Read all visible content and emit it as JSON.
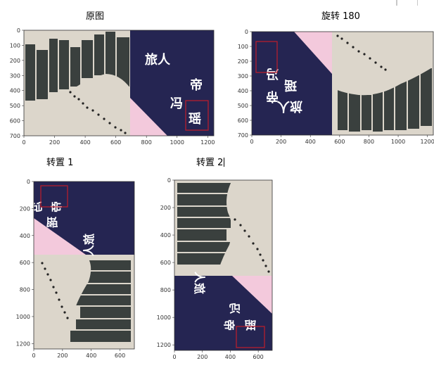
{
  "captions": {
    "original": "原图",
    "rotate180": "旋转 180",
    "transpose1": "转置 1",
    "transpose2": "转置 2"
  },
  "panels": {
    "original": {
      "x_ticks": [
        "0",
        "200",
        "400",
        "600",
        "800",
        "1000",
        "1200"
      ],
      "y_ticks": [
        "0",
        "100",
        "200",
        "300",
        "400",
        "500",
        "600",
        "700"
      ]
    },
    "rotate180": {
      "x_ticks": [
        "0",
        "200",
        "400",
        "600",
        "800",
        "1000",
        "1200"
      ],
      "y_ticks": [
        "0",
        "100",
        "200",
        "300",
        "400",
        "500",
        "600",
        "700"
      ]
    },
    "transpose1": {
      "x_ticks": [
        "0",
        "200",
        "400",
        "600"
      ],
      "y_ticks": [
        "0",
        "200",
        "400",
        "600",
        "800",
        "1000",
        "1200"
      ]
    },
    "transpose2": {
      "x_ticks": [
        "0",
        "200",
        "400",
        "600"
      ],
      "y_ticks": [
        "0",
        "200",
        "400",
        "600",
        "800",
        "1000",
        "1200"
      ]
    }
  },
  "colors": {
    "navy": "#252552",
    "paper": "#dcd6cb",
    "pink": "#f3c9dc",
    "building": "#3a403e",
    "highlight": "#c01d2a"
  }
}
